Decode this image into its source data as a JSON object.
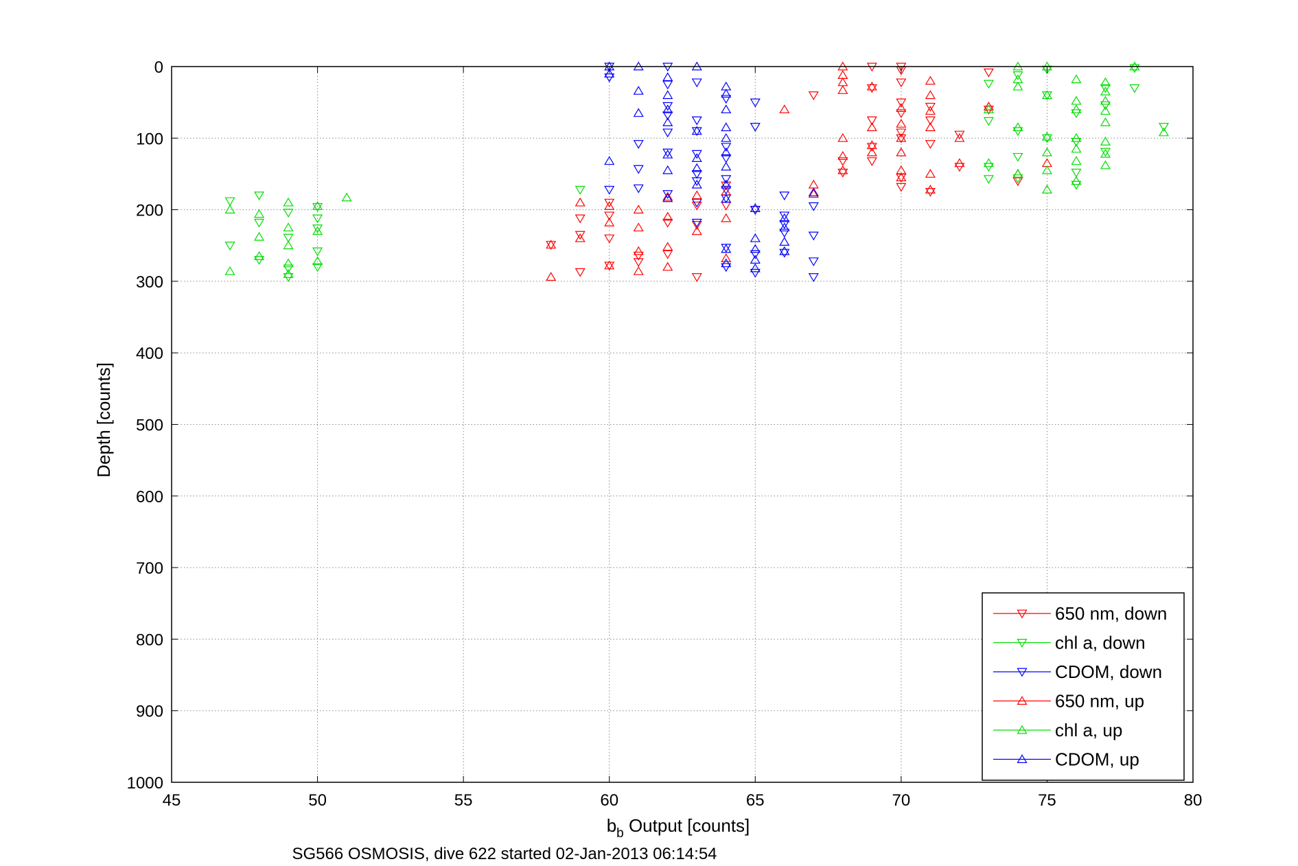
{
  "chart_data": {
    "type": "scatter",
    "title": "",
    "xlabel_main": "b",
    "xlabel_sub": "b",
    "xlabel_rest": " Output [counts]",
    "ylabel": "Depth [counts]",
    "caption": "SG566 OSMOSIS, dive 622 started 02-Jan-2013 06:14:54",
    "xlim": [
      45,
      80
    ],
    "ylim": [
      0,
      1000
    ],
    "y_reversed": true,
    "grid": true,
    "legend_position": "bottom-right",
    "x_ticks": [
      "45",
      "50",
      "55",
      "60",
      "65",
      "70",
      "75",
      "80"
    ],
    "y_ticks": [
      "0",
      "100",
      "200",
      "300",
      "400",
      "500",
      "600",
      "700",
      "800",
      "900",
      "1000"
    ],
    "series": [
      {
        "name": "650 nm, down",
        "color": "#ff0000",
        "marker": "triangle-down",
        "points": [
          [
            58,
            249
          ],
          [
            59,
            212
          ],
          [
            59,
            235
          ],
          [
            59,
            287
          ],
          [
            60,
            190
          ],
          [
            60,
            208
          ],
          [
            60,
            240
          ],
          [
            60,
            278
          ],
          [
            61,
            264
          ],
          [
            61,
            273
          ],
          [
            62,
            218
          ],
          [
            62,
            262
          ],
          [
            63,
            194
          ],
          [
            63,
            221
          ],
          [
            63,
            294
          ],
          [
            64,
            166
          ],
          [
            64,
            194
          ],
          [
            65,
            200
          ],
          [
            67,
            40
          ],
          [
            68,
            148
          ],
          [
            68,
            132
          ],
          [
            69,
            0
          ],
          [
            69,
            30
          ],
          [
            69,
            75
          ],
          [
            69,
            112
          ],
          [
            69,
            132
          ],
          [
            70,
            0
          ],
          [
            70,
            5
          ],
          [
            70,
            22
          ],
          [
            70,
            50
          ],
          [
            70,
            65
          ],
          [
            70,
            92
          ],
          [
            70,
            100
          ],
          [
            70,
            155
          ],
          [
            70,
            168
          ],
          [
            71,
            56
          ],
          [
            71,
            75
          ],
          [
            71,
            108
          ],
          [
            71,
            175
          ],
          [
            72,
            95
          ],
          [
            72,
            140
          ],
          [
            73,
            8
          ],
          [
            73,
            60
          ],
          [
            74,
            160
          ]
        ]
      },
      {
        "name": "chl a, down",
        "color": "#00dd00",
        "marker": "triangle-down",
        "points": [
          [
            47,
            188
          ],
          [
            47,
            250
          ],
          [
            48,
            180
          ],
          [
            48,
            218
          ],
          [
            48,
            270
          ],
          [
            49,
            204
          ],
          [
            49,
            239
          ],
          [
            49,
            282
          ],
          [
            49,
            294
          ],
          [
            50,
            196
          ],
          [
            50,
            212
          ],
          [
            50,
            226
          ],
          [
            50,
            258
          ],
          [
            50,
            280
          ],
          [
            59,
            172
          ],
          [
            73,
            24
          ],
          [
            73,
            76
          ],
          [
            73,
            140
          ],
          [
            73,
            157
          ],
          [
            74,
            12
          ],
          [
            74,
            90
          ],
          [
            74,
            126
          ],
          [
            74,
            156
          ],
          [
            75,
            4
          ],
          [
            75,
            40
          ],
          [
            75,
            100
          ],
          [
            76,
            65
          ],
          [
            76,
            105
          ],
          [
            76,
            148
          ],
          [
            76,
            165
          ],
          [
            77,
            30
          ],
          [
            77,
            54
          ],
          [
            77,
            119
          ],
          [
            78,
            2
          ],
          [
            78,
            30
          ],
          [
            79,
            84
          ]
        ]
      },
      {
        "name": "CDOM, down",
        "color": "#0000ff",
        "marker": "triangle-down",
        "points": [
          [
            60,
            0
          ],
          [
            60,
            15
          ],
          [
            60,
            172
          ],
          [
            61,
            108
          ],
          [
            61,
            143
          ],
          [
            61,
            170
          ],
          [
            62,
            0
          ],
          [
            62,
            25
          ],
          [
            62,
            55
          ],
          [
            62,
            68
          ],
          [
            62,
            92
          ],
          [
            62,
            120
          ],
          [
            62,
            178
          ],
          [
            63,
            22
          ],
          [
            63,
            75
          ],
          [
            63,
            90
          ],
          [
            63,
            122
          ],
          [
            63,
            150
          ],
          [
            63,
            160
          ],
          [
            63,
            190
          ],
          [
            63,
            218
          ],
          [
            64,
            45
          ],
          [
            64,
            112
          ],
          [
            64,
            128
          ],
          [
            64,
            157
          ],
          [
            64,
            172
          ],
          [
            64,
            184
          ],
          [
            64,
            253
          ],
          [
            64,
            280
          ],
          [
            65,
            50
          ],
          [
            65,
            84
          ],
          [
            65,
            200
          ],
          [
            65,
            262
          ],
          [
            65,
            288
          ],
          [
            66,
            180
          ],
          [
            66,
            208
          ],
          [
            66,
            220
          ],
          [
            66,
            232
          ],
          [
            66,
            260
          ],
          [
            67,
            195
          ],
          [
            67,
            236
          ],
          [
            67,
            272
          ],
          [
            67,
            294
          ]
        ]
      },
      {
        "name": "650 nm, up",
        "color": "#ff0000",
        "marker": "triangle-up",
        "points": [
          [
            58,
            249
          ],
          [
            58,
            294
          ],
          [
            59,
            190
          ],
          [
            59,
            240
          ],
          [
            60,
            195
          ],
          [
            60,
            218
          ],
          [
            60,
            278
          ],
          [
            61,
            200
          ],
          [
            61,
            225
          ],
          [
            61,
            258
          ],
          [
            61,
            286
          ],
          [
            62,
            182
          ],
          [
            62,
            210
          ],
          [
            62,
            252
          ],
          [
            62,
            280
          ],
          [
            63,
            180
          ],
          [
            63,
            230
          ],
          [
            64,
            175
          ],
          [
            64,
            212
          ],
          [
            64,
            268
          ],
          [
            66,
            60
          ],
          [
            67,
            165
          ],
          [
            67,
            178
          ],
          [
            68,
            0
          ],
          [
            68,
            12
          ],
          [
            68,
            22
          ],
          [
            68,
            33
          ],
          [
            68,
            100
          ],
          [
            68,
            125
          ],
          [
            68,
            145
          ],
          [
            69,
            28
          ],
          [
            69,
            85
          ],
          [
            69,
            110
          ],
          [
            69,
            120
          ],
          [
            70,
            58
          ],
          [
            70,
            80
          ],
          [
            70,
            100
          ],
          [
            70,
            120
          ],
          [
            70,
            145
          ],
          [
            70,
            155
          ],
          [
            71,
            20
          ],
          [
            71,
            40
          ],
          [
            71,
            62
          ],
          [
            71,
            85
          ],
          [
            71,
            150
          ],
          [
            71,
            172
          ],
          [
            72,
            100
          ],
          [
            72,
            135
          ],
          [
            73,
            56
          ],
          [
            74,
            150
          ],
          [
            75,
            135
          ]
        ]
      },
      {
        "name": "chl a, up",
        "color": "#00dd00",
        "marker": "triangle-up",
        "points": [
          [
            47,
            200
          ],
          [
            47,
            286
          ],
          [
            48,
            206
          ],
          [
            48,
            238
          ],
          [
            48,
            265
          ],
          [
            49,
            190
          ],
          [
            49,
            225
          ],
          [
            49,
            250
          ],
          [
            49,
            275
          ],
          [
            49,
            290
          ],
          [
            50,
            195
          ],
          [
            50,
            230
          ],
          [
            50,
            272
          ],
          [
            51,
            183
          ],
          [
            73,
            60
          ],
          [
            73,
            135
          ],
          [
            74,
            0
          ],
          [
            74,
            18
          ],
          [
            74,
            28
          ],
          [
            74,
            85
          ],
          [
            74,
            150
          ],
          [
            75,
            0
          ],
          [
            75,
            40
          ],
          [
            75,
            98
          ],
          [
            75,
            120
          ],
          [
            75,
            145
          ],
          [
            75,
            172
          ],
          [
            76,
            18
          ],
          [
            76,
            48
          ],
          [
            76,
            60
          ],
          [
            76,
            100
          ],
          [
            76,
            115
          ],
          [
            76,
            132
          ],
          [
            76,
            160
          ],
          [
            77,
            22
          ],
          [
            77,
            35
          ],
          [
            77,
            48
          ],
          [
            77,
            62
          ],
          [
            77,
            78
          ],
          [
            77,
            105
          ],
          [
            77,
            122
          ],
          [
            77,
            138
          ],
          [
            78,
            0
          ],
          [
            79,
            92
          ]
        ]
      },
      {
        "name": "CDOM, up",
        "color": "#0000ff",
        "marker": "triangle-up",
        "points": [
          [
            60,
            0
          ],
          [
            60,
            10
          ],
          [
            60,
            132
          ],
          [
            61,
            0
          ],
          [
            61,
            34
          ],
          [
            61,
            65
          ],
          [
            62,
            15
          ],
          [
            62,
            40
          ],
          [
            62,
            60
          ],
          [
            62,
            78
          ],
          [
            62,
            123
          ],
          [
            62,
            145
          ],
          [
            62,
            184
          ],
          [
            63,
            0
          ],
          [
            63,
            90
          ],
          [
            63,
            128
          ],
          [
            63,
            142
          ],
          [
            63,
            165
          ],
          [
            64,
            28
          ],
          [
            64,
            38
          ],
          [
            64,
            60
          ],
          [
            64,
            85
          ],
          [
            64,
            100
          ],
          [
            64,
            120
          ],
          [
            64,
            140
          ],
          [
            64,
            165
          ],
          [
            64,
            185
          ],
          [
            64,
            255
          ],
          [
            64,
            275
          ],
          [
            65,
            198
          ],
          [
            65,
            240
          ],
          [
            65,
            255
          ],
          [
            65,
            270
          ],
          [
            65,
            282
          ],
          [
            66,
            212
          ],
          [
            66,
            225
          ],
          [
            66,
            245
          ],
          [
            66,
            258
          ],
          [
            67,
            176
          ]
        ]
      }
    ]
  }
}
